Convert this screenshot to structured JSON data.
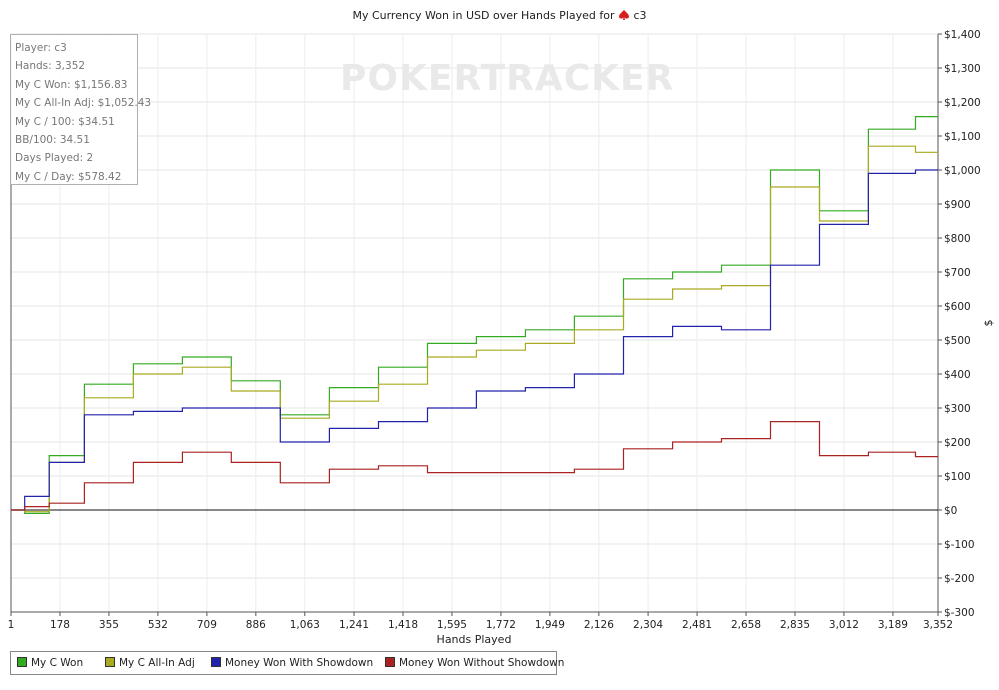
{
  "title": "My Currency Won in USD over Hands Played for",
  "player_name": "c3",
  "watermark": "POKERTRACKER",
  "stats": [
    "Player: c3",
    "Hands: 3,352",
    "My C Won: $1,156.83",
    "My C All-In Adj: $1,052.43",
    "My C / 100: $34.51",
    "BB/100: 34.51",
    "Days Played: 2",
    "My C / Day: $578.42"
  ],
  "chart_data": {
    "type": "line",
    "title": "My Currency Won in USD over Hands Played for c3",
    "xlabel": "Hands Played",
    "ylabel": "$",
    "xlim": [
      1,
      3352
    ],
    "ylim": [
      -300,
      1400
    ],
    "x_ticks": [
      "1",
      "178",
      "355",
      "532",
      "709",
      "886",
      "1,063",
      "1,241",
      "1,418",
      "1,595",
      "1,772",
      "1,949",
      "2,126",
      "2,304",
      "2,481",
      "2,658",
      "2,835",
      "3,012",
      "3,189",
      "3,352"
    ],
    "x_tick_values": [
      1,
      178,
      355,
      532,
      709,
      886,
      1063,
      1241,
      1418,
      1595,
      1772,
      1949,
      2126,
      2304,
      2481,
      2658,
      2835,
      3012,
      3189,
      3352
    ],
    "y_ticks": [
      "$-300",
      "$-200",
      "$-100",
      "$0",
      "$100",
      "$200",
      "$300",
      "$400",
      "$500",
      "$600",
      "$700",
      "$800",
      "$900",
      "$1,000",
      "$1,100",
      "$1,200",
      "$1,300",
      "$1,400"
    ],
    "y_tick_values": [
      -300,
      -200,
      -100,
      0,
      100,
      200,
      300,
      400,
      500,
      600,
      700,
      800,
      900,
      1000,
      1100,
      1200,
      1300,
      1400
    ],
    "grid": true,
    "legend_position": "bottom-left",
    "x": [
      1,
      100,
      178,
      355,
      532,
      709,
      886,
      1063,
      1241,
      1418,
      1595,
      1772,
      1949,
      2126,
      2304,
      2481,
      2658,
      2835,
      3012,
      3189,
      3352
    ],
    "series": [
      {
        "name": "My C Won",
        "color": "#33aa22",
        "values": [
          0,
          -10,
          160,
          370,
          430,
          450,
          380,
          280,
          360,
          420,
          490,
          510,
          530,
          570,
          680,
          700,
          720,
          1000,
          880,
          1120,
          1157
        ]
      },
      {
        "name": "My C All-In Adj",
        "color": "#aaaa22",
        "values": [
          0,
          -5,
          140,
          330,
          400,
          420,
          350,
          270,
          320,
          370,
          450,
          470,
          490,
          530,
          620,
          650,
          660,
          950,
          850,
          1070,
          1052
        ]
      },
      {
        "name": "Money Won With Showdown",
        "color": "#2222aa",
        "values": [
          0,
          40,
          140,
          280,
          290,
          300,
          300,
          200,
          240,
          260,
          300,
          350,
          360,
          400,
          510,
          540,
          530,
          720,
          840,
          990,
          1000
        ]
      },
      {
        "name": "Money Won Without Showdown",
        "color": "#aa2222",
        "values": [
          0,
          10,
          20,
          80,
          140,
          170,
          140,
          80,
          120,
          130,
          110,
          110,
          110,
          120,
          180,
          200,
          210,
          260,
          160,
          170,
          157
        ]
      }
    ]
  }
}
